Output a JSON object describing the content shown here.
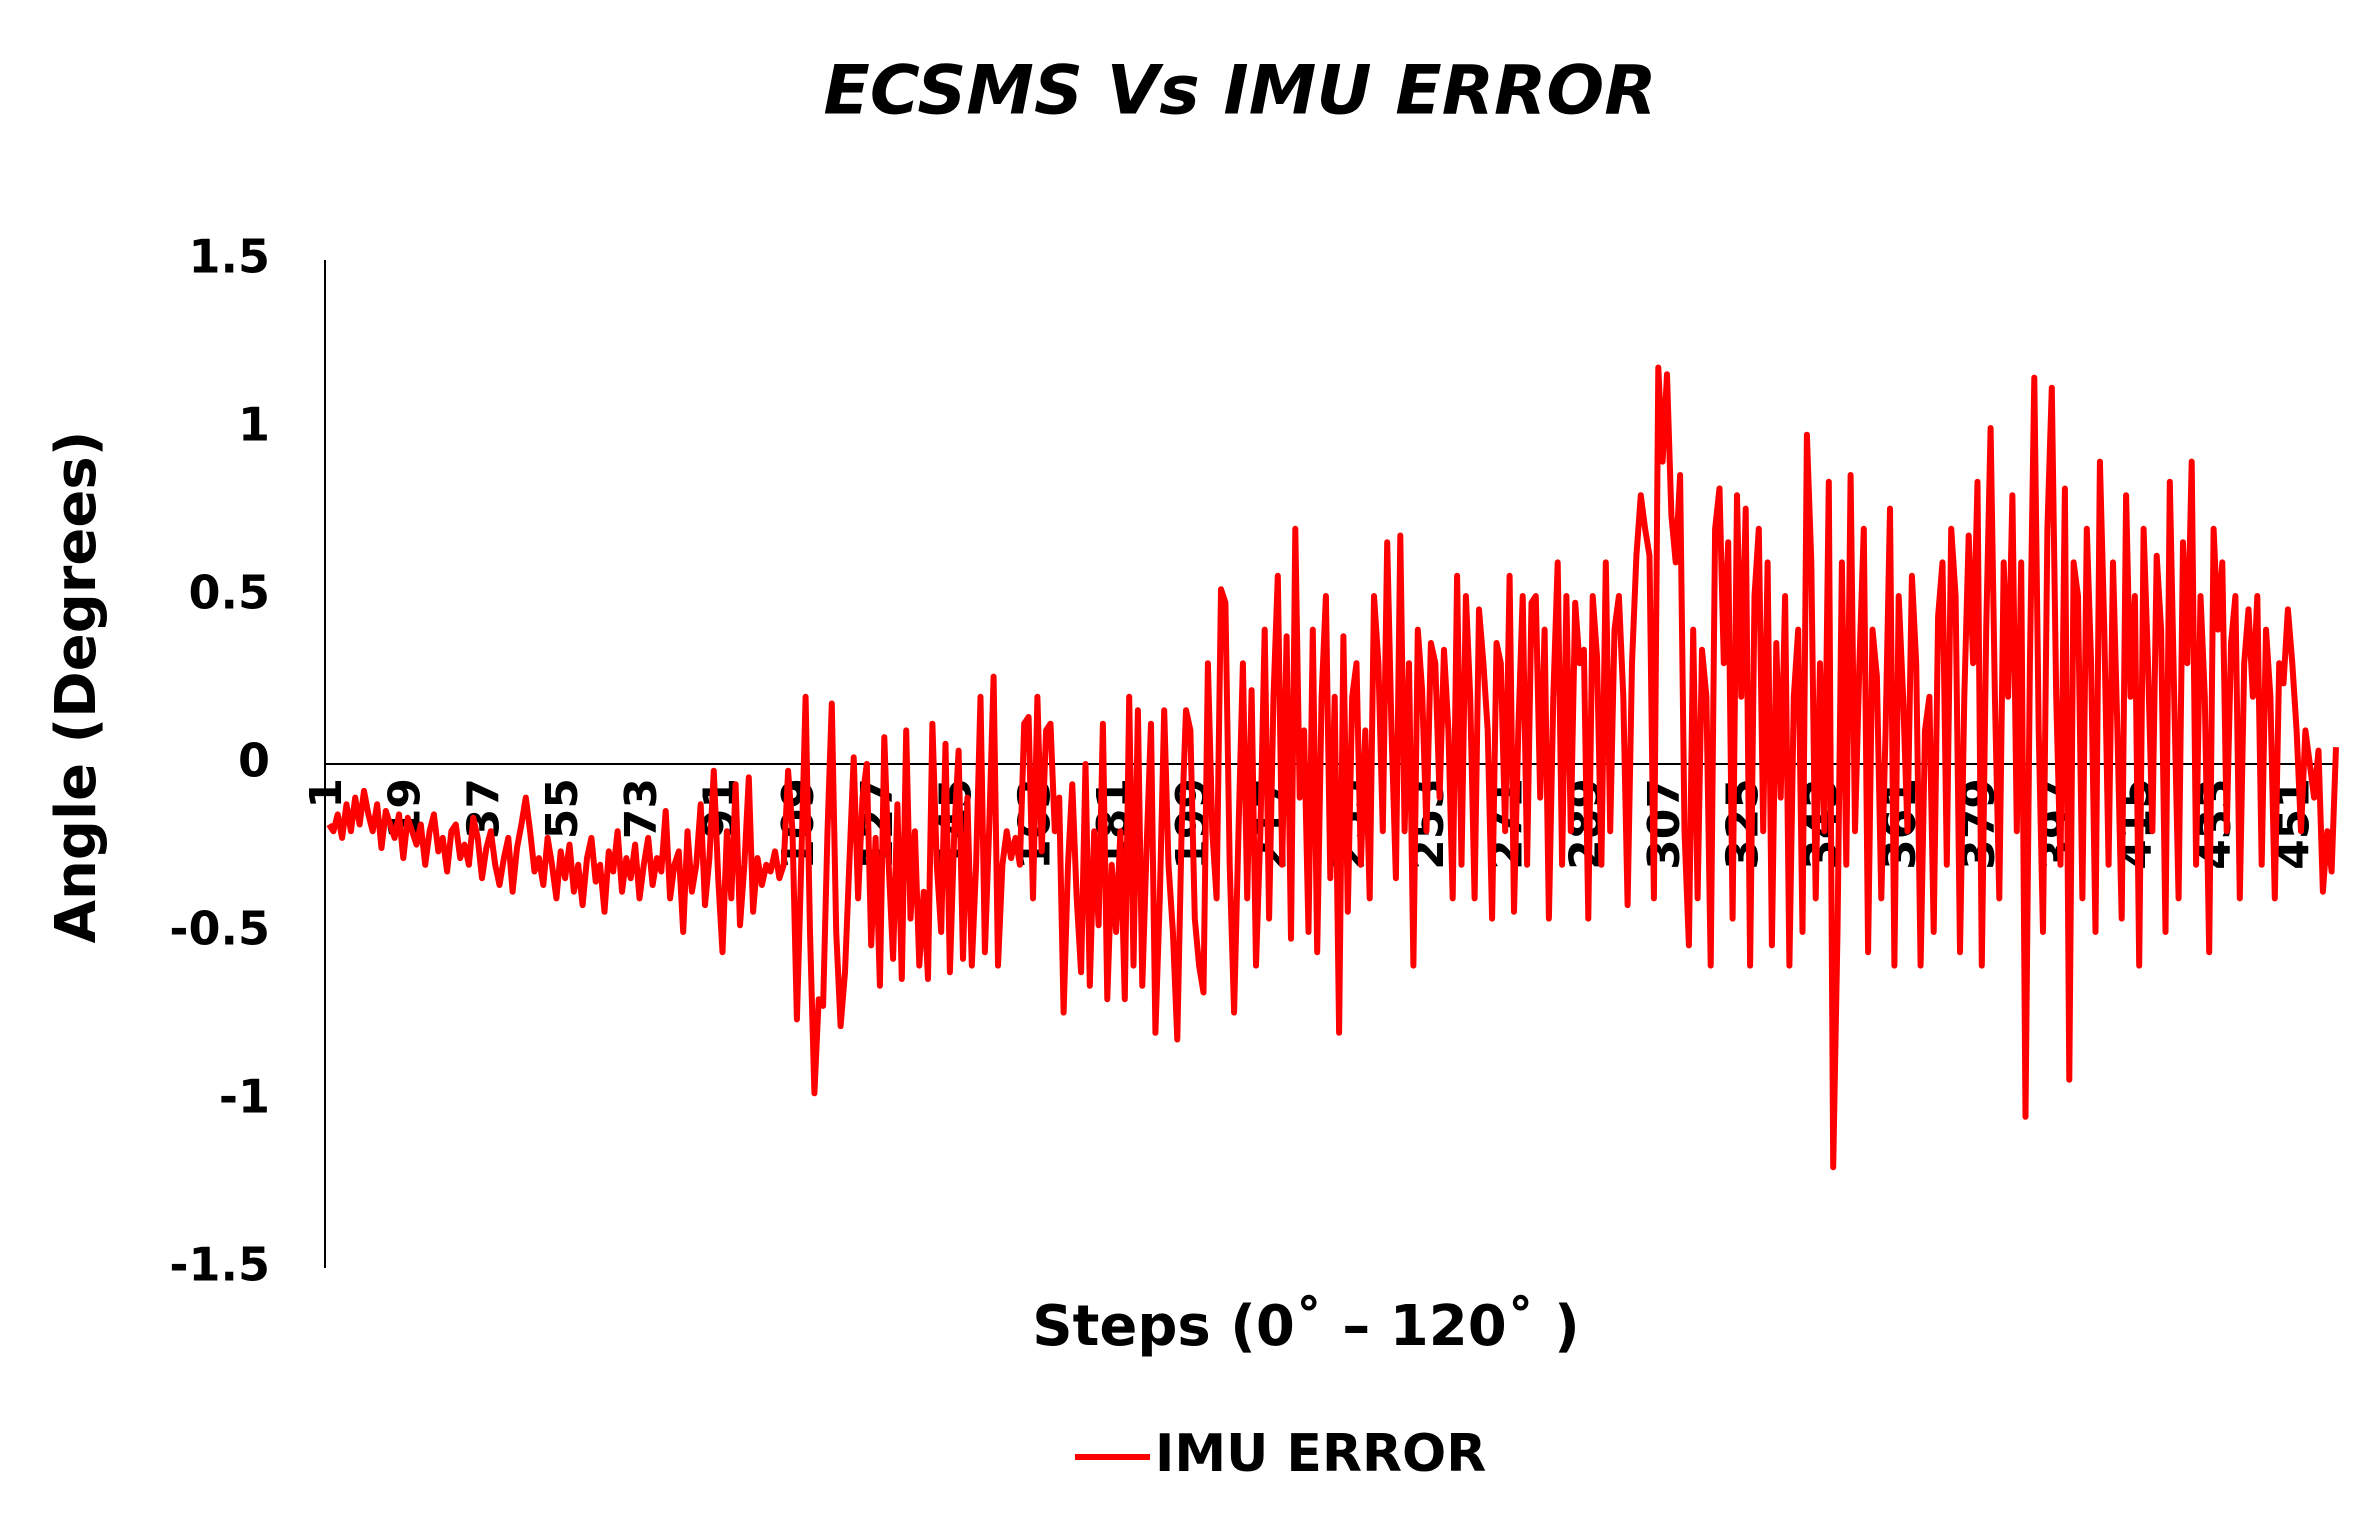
{
  "chart_data": {
    "type": "line",
    "title": "ECSMS Vs IMU ERROR",
    "x_label": "Steps (0˚ – 120˚ )",
    "y_label": "Angle (Degrees)",
    "ylim": [
      -1.5,
      1.5
    ],
    "yticks": [
      -1.5,
      -1,
      -0.5,
      0,
      0.5,
      1,
      1.5
    ],
    "grid": false,
    "legend": "bottom",
    "categories": [
      1,
      null,
      null,
      null,
      null,
      null,
      null,
      null,
      null,
      null,
      null,
      null,
      null,
      null,
      null,
      null,
      null,
      null,
      19,
      null,
      null,
      null,
      null,
      null,
      null,
      null,
      null,
      null,
      null,
      null,
      null,
      null,
      null,
      null,
      null,
      null,
      37,
      null,
      null,
      null,
      null,
      null,
      null,
      null,
      null,
      null,
      null,
      null,
      null,
      null,
      null,
      null,
      null,
      null,
      55,
      null,
      null,
      null,
      null,
      null,
      null,
      null,
      null,
      null,
      null,
      null,
      null,
      null,
      null,
      null,
      null,
      null,
      73,
      null,
      null,
      null,
      null,
      null,
      null,
      null,
      null,
      null,
      null,
      null,
      null,
      null,
      null,
      null,
      null,
      null,
      91,
      null,
      null,
      null,
      null,
      null,
      null,
      null,
      null,
      null,
      null,
      null,
      null,
      null,
      null,
      null,
      null,
      null,
      109,
      null,
      null,
      null,
      null,
      null,
      null,
      null,
      null,
      null,
      null,
      null,
      null,
      null,
      null,
      null,
      null,
      null,
      127,
      null,
      null,
      null,
      null,
      null,
      null,
      null,
      null,
      null,
      null,
      null,
      null,
      null,
      null,
      null,
      null,
      null,
      145,
      null,
      null,
      null,
      null,
      null,
      null,
      null,
      null,
      null,
      null,
      null,
      null,
      null,
      null,
      null,
      null,
      null,
      163,
      null,
      null,
      null,
      null,
      null,
      null,
      null,
      null,
      null,
      null,
      null,
      null,
      null,
      null,
      null,
      null,
      null,
      181,
      null,
      null,
      null,
      null,
      null,
      null,
      null,
      null,
      null,
      null,
      null,
      null,
      null,
      null,
      null,
      null,
      null,
      199,
      null,
      null,
      null,
      null,
      null,
      null,
      null,
      null,
      null,
      null,
      null,
      null,
      null,
      null,
      null,
      null,
      null,
      217,
      null,
      null,
      null,
      null,
      null,
      null,
      null,
      null,
      null,
      null,
      null,
      null,
      null,
      null,
      null,
      null,
      null,
      235,
      null,
      null,
      null,
      null,
      null,
      null,
      null,
      null,
      null,
      null,
      null,
      null,
      null,
      null,
      null,
      null,
      null,
      253,
      null,
      null,
      null,
      null,
      null,
      null,
      null,
      null,
      null,
      null,
      null,
      null,
      null,
      null,
      null,
      null,
      null,
      271,
      null,
      null,
      null,
      null,
      null,
      null,
      null,
      null,
      null,
      null,
      null,
      null,
      null,
      null,
      null,
      null,
      null,
      289,
      null,
      null,
      null,
      null,
      null,
      null,
      null,
      null,
      null,
      null,
      null,
      null,
      null,
      null,
      null,
      null,
      null,
      307,
      null,
      null,
      null,
      null,
      null,
      null,
      null,
      null,
      null,
      null,
      null,
      null,
      null,
      null,
      null,
      null,
      null,
      325,
      null,
      null,
      null,
      null,
      null,
      null,
      null,
      null,
      null,
      null,
      null,
      null,
      null,
      null,
      null,
      null,
      null,
      343,
      null,
      null,
      null,
      null,
      null,
      null,
      null,
      null,
      null,
      null,
      null,
      null,
      null,
      null,
      null,
      null,
      null,
      361,
      null,
      null,
      null,
      null,
      null,
      null,
      null,
      null,
      null,
      null,
      null,
      null,
      null,
      null,
      null,
      null,
      null,
      379,
      null,
      null,
      null,
      null,
      null,
      null,
      null,
      null,
      null,
      null,
      null,
      null,
      null,
      null,
      null,
      null,
      null,
      397,
      null,
      null,
      null,
      null,
      null,
      null,
      null,
      null,
      null,
      null,
      null,
      null,
      null,
      null,
      null,
      null,
      null,
      415,
      null,
      null,
      null,
      null,
      null,
      null,
      null,
      null,
      null,
      null,
      null,
      null,
      null,
      null,
      null,
      null,
      null,
      433,
      null,
      null,
      null,
      null,
      null,
      null,
      null,
      null,
      null,
      null,
      null,
      null,
      null,
      null,
      null,
      null,
      null,
      451,
      null,
      null,
      null,
      null,
      null,
      null,
      null,
      null,
      null
    ],
    "series": [
      {
        "name": "IMU ERROR",
        "color": "#ff0000",
        "values": [
          -0.18,
          -0.2,
          -0.15,
          -0.22,
          -0.12,
          -0.2,
          -0.1,
          -0.18,
          -0.08,
          -0.15,
          -0.2,
          -0.12,
          -0.25,
          -0.14,
          -0.18,
          -0.22,
          -0.15,
          -0.28,
          -0.16,
          -0.2,
          -0.24,
          -0.18,
          -0.3,
          -0.2,
          -0.15,
          -0.26,
          -0.22,
          -0.32,
          -0.2,
          -0.18,
          -0.28,
          -0.24,
          -0.3,
          -0.16,
          -0.22,
          -0.34,
          -0.25,
          -0.2,
          -0.3,
          -0.36,
          -0.28,
          -0.22,
          -0.38,
          -0.25,
          -0.18,
          -0.1,
          -0.2,
          -0.32,
          -0.28,
          -0.36,
          -0.22,
          -0.3,
          -0.4,
          -0.26,
          -0.34,
          -0.24,
          -0.38,
          -0.3,
          -0.42,
          -0.28,
          -0.22,
          -0.35,
          -0.3,
          -0.44,
          -0.26,
          -0.32,
          -0.2,
          -0.38,
          -0.28,
          -0.34,
          -0.24,
          -0.4,
          -0.3,
          -0.22,
          -0.36,
          -0.28,
          -0.32,
          -0.14,
          -0.4,
          -0.3,
          -0.26,
          -0.5,
          -0.2,
          -0.38,
          -0.3,
          -0.12,
          -0.42,
          -0.28,
          -0.02,
          -0.34,
          -0.56,
          -0.2,
          -0.4,
          -0.06,
          -0.48,
          -0.3,
          -0.04,
          -0.44,
          -0.28,
          -0.36,
          -0.3,
          -0.32,
          -0.26,
          -0.34,
          -0.3,
          -0.02,
          -0.2,
          -0.76,
          -0.3,
          0.2,
          -0.5,
          -0.98,
          -0.7,
          -0.72,
          -0.2,
          0.18,
          -0.5,
          -0.78,
          -0.62,
          -0.3,
          0.02,
          -0.4,
          -0.1,
          0.0,
          -0.54,
          -0.22,
          -0.66,
          0.08,
          -0.3,
          -0.58,
          -0.12,
          -0.64,
          0.1,
          -0.46,
          -0.2,
          -0.6,
          -0.38,
          -0.64,
          0.12,
          -0.3,
          -0.5,
          0.06,
          -0.62,
          -0.2,
          0.04,
          -0.58,
          -0.1,
          -0.6,
          -0.3,
          0.2,
          -0.56,
          -0.18,
          0.26,
          -0.6,
          -0.3,
          -0.2,
          -0.28,
          -0.22,
          -0.3,
          0.12,
          0.14,
          -0.4,
          0.2,
          -0.26,
          0.1,
          0.12,
          -0.2,
          -0.1,
          -0.74,
          -0.3,
          -0.06,
          -0.4,
          -0.62,
          0.0,
          -0.66,
          -0.2,
          -0.48,
          0.12,
          -0.7,
          -0.3,
          -0.5,
          -0.2,
          -0.7,
          0.2,
          -0.6,
          0.16,
          -0.66,
          -0.24,
          0.12,
          -0.8,
          -0.4,
          0.16,
          -0.3,
          -0.5,
          -0.82,
          -0.2,
          0.16,
          0.1,
          -0.46,
          -0.6,
          -0.68,
          0.3,
          -0.2,
          -0.4,
          0.52,
          0.48,
          -0.3,
          -0.74,
          -0.2,
          0.3,
          -0.4,
          0.22,
          -0.6,
          -0.2,
          0.4,
          -0.46,
          0.2,
          0.56,
          -0.3,
          0.38,
          -0.52,
          0.7,
          -0.1,
          0.1,
          -0.5,
          0.4,
          -0.56,
          0.2,
          0.5,
          -0.34,
          0.2,
          -0.8,
          0.38,
          -0.44,
          0.2,
          0.3,
          -0.3,
          0.1,
          -0.4,
          0.5,
          0.3,
          -0.2,
          0.66,
          0.1,
          -0.34,
          0.68,
          -0.2,
          0.3,
          -0.6,
          0.4,
          0.22,
          -0.2,
          0.36,
          0.3,
          -0.1,
          0.34,
          0.1,
          -0.4,
          0.56,
          -0.3,
          0.5,
          0.2,
          -0.4,
          0.46,
          0.3,
          0.1,
          -0.46,
          0.36,
          0.3,
          -0.2,
          0.56,
          -0.44,
          0.1,
          0.5,
          -0.3,
          0.48,
          0.5,
          -0.1,
          0.4,
          -0.46,
          0.2,
          0.6,
          -0.3,
          0.5,
          -0.2,
          0.48,
          0.3,
          0.34,
          -0.46,
          0.5,
          0.32,
          -0.3,
          0.6,
          -0.2,
          0.4,
          0.5,
          0.2,
          -0.42,
          0.3,
          0.62,
          0.8,
          0.7,
          0.62,
          -0.4,
          1.18,
          0.9,
          1.16,
          0.74,
          0.6,
          0.86,
          -0.2,
          -0.54,
          0.4,
          -0.4,
          0.34,
          0.2,
          -0.6,
          0.7,
          0.82,
          0.3,
          0.66,
          -0.46,
          0.8,
          0.2,
          0.76,
          -0.6,
          0.5,
          0.7,
          -0.2,
          0.6,
          -0.54,
          0.36,
          -0.1,
          0.5,
          -0.6,
          0.2,
          0.4,
          -0.5,
          0.98,
          0.6,
          -0.4,
          0.3,
          -0.2,
          0.84,
          -1.2,
          -0.5,
          0.6,
          -0.3,
          0.86,
          -0.2,
          0.3,
          0.7,
          -0.56,
          0.4,
          0.26,
          -0.4,
          0.1,
          0.76,
          -0.6,
          0.5,
          0.2,
          -0.2,
          0.56,
          0.3,
          -0.6,
          0.1,
          0.2,
          -0.5,
          0.44,
          0.6,
          -0.3,
          0.7,
          0.5,
          -0.56,
          0.2,
          0.68,
          0.3,
          0.84,
          -0.6,
          0.4,
          1.0,
          0.2,
          -0.4,
          0.6,
          0.2,
          0.8,
          -0.2,
          0.6,
          -1.05,
          0.3,
          1.15,
          0.1,
          -0.5,
          0.7,
          1.12,
          0.2,
          -0.3,
          0.82,
          -0.94,
          0.6,
          0.5,
          -0.4,
          0.7,
          0.3,
          -0.5,
          0.9,
          0.4,
          -0.3,
          0.6,
          0.1,
          -0.46,
          0.8,
          0.2,
          0.5,
          -0.6,
          0.7,
          0.3,
          -0.2,
          0.62,
          0.4,
          -0.5,
          0.84,
          0.2,
          -0.4,
          0.66,
          0.3,
          0.9,
          -0.3,
          0.5,
          0.2,
          -0.56,
          0.7,
          0.4,
          0.6,
          -0.2,
          0.36,
          0.5,
          -0.4,
          0.3,
          0.46,
          0.2,
          0.5,
          -0.3,
          0.4,
          0.2,
          -0.4,
          0.3,
          0.24,
          0.46,
          0.3,
          0.1,
          -0.2,
          0.1,
          0.0,
          -0.1,
          0.04,
          -0.38,
          -0.2,
          -0.32,
          0.05
        ]
      }
    ]
  }
}
